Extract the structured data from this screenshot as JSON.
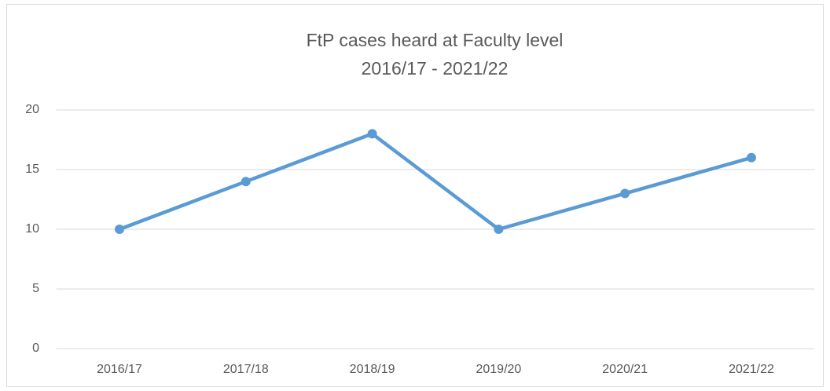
{
  "chart_data": {
    "type": "line",
    "title": [
      "FtP cases heard at Faculty level",
      "2016/17 - 2021/22"
    ],
    "categories": [
      "2016/17",
      "2017/18",
      "2018/19",
      "2019/20",
      "2020/21",
      "2021/22"
    ],
    "values": [
      10,
      14,
      18,
      10,
      13,
      16
    ],
    "color": "#5b9bd5",
    "ylim": [
      0,
      20
    ],
    "yticks": [
      0,
      5,
      10,
      15,
      20
    ],
    "grid": true
  }
}
